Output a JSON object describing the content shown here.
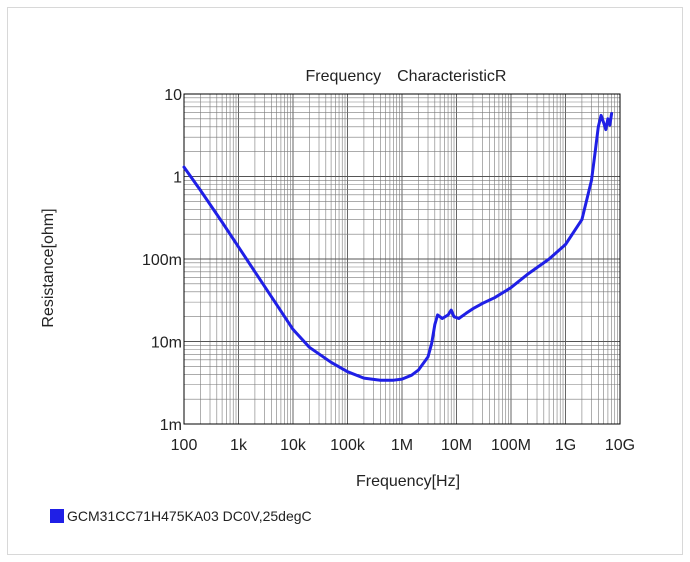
{
  "chart_data": {
    "type": "line",
    "title": "Frequency　CharacteristicR",
    "xlabel": "Frequency[Hz]",
    "ylabel": "Resistance[ohm]",
    "xscale": "log",
    "yscale": "log",
    "xlim": [
      100,
      10000000000
    ],
    "ylim": [
      0.001,
      10
    ],
    "grid": true,
    "legend_position": "bottom-left",
    "x_ticks": [
      {
        "value": 100,
        "label": "100"
      },
      {
        "value": 1000,
        "label": "1k"
      },
      {
        "value": 10000,
        "label": "10k"
      },
      {
        "value": 100000,
        "label": "100k"
      },
      {
        "value": 1000000,
        "label": "1M"
      },
      {
        "value": 10000000,
        "label": "10M"
      },
      {
        "value": 100000000,
        "label": "100M"
      },
      {
        "value": 1000000000,
        "label": "1G"
      },
      {
        "value": 10000000000,
        "label": "10G"
      }
    ],
    "y_ticks": [
      {
        "value": 0.001,
        "label": "1m"
      },
      {
        "value": 0.01,
        "label": "10m"
      },
      {
        "value": 0.1,
        "label": "100m"
      },
      {
        "value": 1,
        "label": "1"
      },
      {
        "value": 10,
        "label": "10"
      }
    ],
    "series": [
      {
        "name": "GCM31CC71H475KA03 DC0V,25degC",
        "color": "#1f1fe6",
        "x": [
          100,
          200,
          500,
          1000,
          2000,
          5000,
          10000,
          20000,
          50000,
          100000,
          200000,
          400000,
          700000,
          1000000,
          1500000,
          2000000,
          3000000,
          3500000,
          4000000,
          4500000,
          5500000,
          7000000,
          8000000,
          9000000,
          11000000,
          15000000,
          20000000,
          30000000,
          50000000,
          100000000,
          200000000,
          500000000,
          1000000000,
          2000000000,
          3000000000,
          3500000000,
          4000000000,
          4500000000,
          5000000000,
          5500000000,
          6000000000,
          6500000000,
          7000000000
        ],
        "y": [
          1.3,
          0.68,
          0.28,
          0.14,
          0.07,
          0.028,
          0.014,
          0.0085,
          0.0056,
          0.0043,
          0.0036,
          0.0034,
          0.0034,
          0.0035,
          0.0039,
          0.0045,
          0.0065,
          0.0095,
          0.016,
          0.021,
          0.019,
          0.021,
          0.024,
          0.02,
          0.019,
          0.022,
          0.025,
          0.029,
          0.034,
          0.045,
          0.065,
          0.1,
          0.15,
          0.3,
          0.9,
          2.0,
          4.0,
          5.5,
          4.5,
          3.7,
          5.0,
          4.2,
          5.8
        ]
      }
    ]
  }
}
